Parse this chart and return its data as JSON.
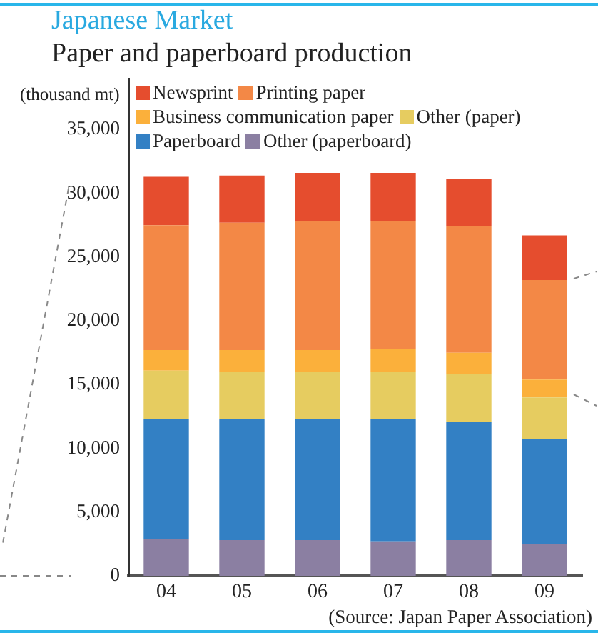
{
  "chart_data": {
    "type": "bar",
    "title": "Japanese Market",
    "subtitle": "Paper and paperboard production",
    "ylabel": "(thousand mt)",
    "categories": [
      "04",
      "05",
      "06",
      "07",
      "08",
      "09"
    ],
    "stacked": true,
    "series": [
      {
        "name": "Other (paperboard)",
        "color": "#8b7fa2",
        "values": [
          2900,
          2800,
          2800,
          2700,
          2800,
          2500
        ]
      },
      {
        "name": "Paperboard",
        "color": "#3380c4",
        "values": [
          9400,
          9500,
          9500,
          9600,
          9300,
          8200
        ]
      },
      {
        "name": "Other (paper)",
        "color": "#e6cc60",
        "values": [
          3800,
          3700,
          3700,
          3700,
          3700,
          3300
        ]
      },
      {
        "name": "Business communication paper",
        "color": "#fbb03b",
        "values": [
          1600,
          1700,
          1700,
          1800,
          1700,
          1400
        ]
      },
      {
        "name": "Printing paper",
        "color": "#f38846",
        "values": [
          9800,
          10000,
          10100,
          10000,
          9900,
          7800
        ]
      },
      {
        "name": "Newsprint",
        "color": "#e54d2e",
        "values": [
          3800,
          3700,
          3800,
          3800,
          3700,
          3500
        ]
      }
    ],
    "ylim": [
      0,
      39000
    ],
    "yticks": [
      0,
      {
        "value": 5000,
        "label": "5,000"
      },
      {
        "value": 10000,
        "label": "10,000"
      },
      {
        "value": 15000,
        "label": "15,000"
      },
      {
        "value": 20000,
        "label": "20,000"
      },
      {
        "value": 25000,
        "label": "25,000"
      },
      {
        "value": 30000,
        "label": "30,000"
      },
      {
        "value": 35000,
        "label": "35,000"
      }
    ],
    "legend": "top",
    "annotations": [
      "(Source: Japan Paper Association)"
    ]
  }
}
